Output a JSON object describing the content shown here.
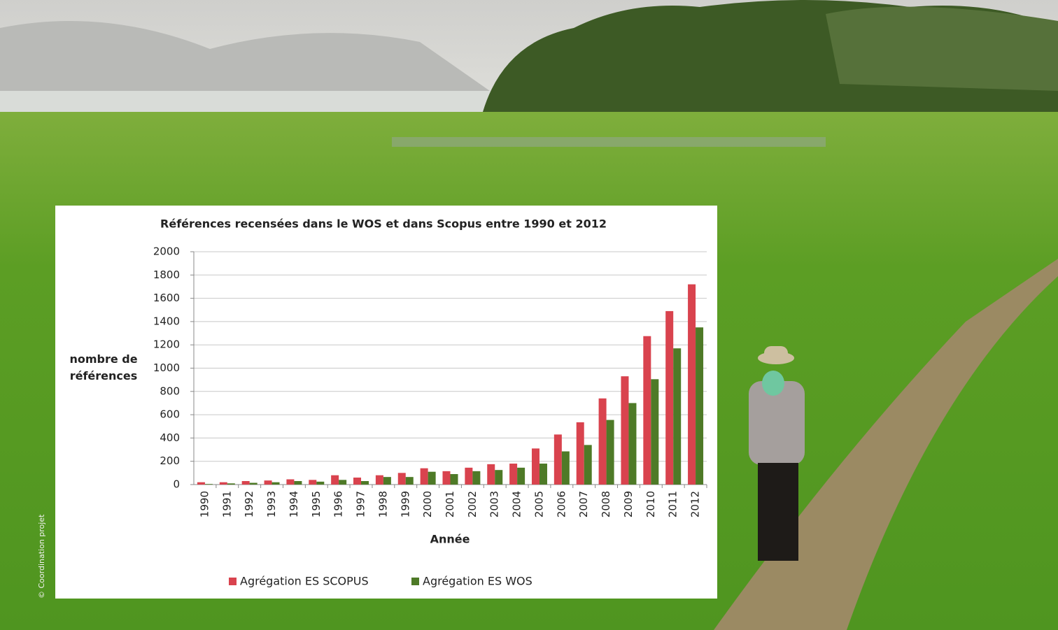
{
  "chart_data": {
    "type": "bar",
    "title": "Références recensées dans le WOS et dans Scopus entre 1990 et 2012",
    "y_label": "nombre de références",
    "x_label": "Année",
    "categories": [
      "1990",
      "1991",
      "1992",
      "1993",
      "1994",
      "1995",
      "1996",
      "1997",
      "1998",
      "1999",
      "2000",
      "2001",
      "2002",
      "2003",
      "2004",
      "2005",
      "2006",
      "2007",
      "2008",
      "2009",
      "2010",
      "2011",
      "2012"
    ],
    "series": [
      {
        "name": "Agrégation ES SCOPUS",
        "color": "#d9434e",
        "values": [
          20,
          20,
          30,
          35,
          45,
          40,
          80,
          60,
          80,
          100,
          140,
          115,
          145,
          175,
          180,
          310,
          430,
          535,
          740,
          930,
          1275,
          1490,
          1720
        ]
      },
      {
        "name": "Agrégation ES WOS",
        "color": "#4e7a27",
        "values": [
          5,
          10,
          15,
          20,
          30,
          25,
          40,
          30,
          65,
          65,
          110,
          90,
          115,
          125,
          145,
          180,
          285,
          340,
          555,
          700,
          905,
          1170,
          1350
        ]
      }
    ],
    "ylim": [
      0,
      2000
    ],
    "yticks": [
      0,
      200,
      400,
      600,
      800,
      1000,
      1200,
      1400,
      1600,
      1800,
      2000
    ],
    "grid": true
  },
  "credit": "© Coordination projet"
}
